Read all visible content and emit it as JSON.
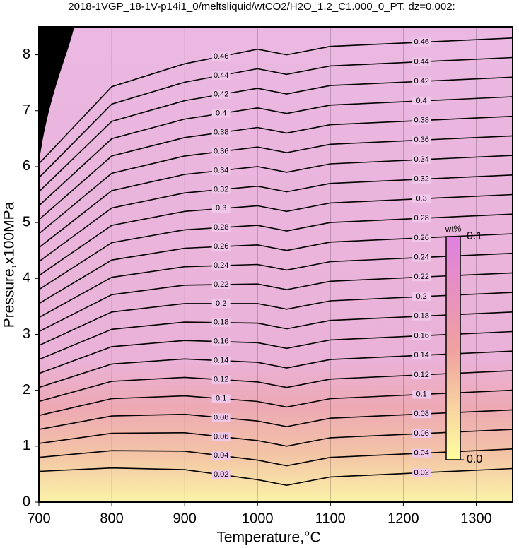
{
  "chart_data": {
    "type": "contour",
    "title": "2018-1VGP_18-1V-p14i1_0/meltsliquid/wtCO2/H2O_1.2_C1.000_0_PT, dz=0.002:",
    "x_label": "Temperature,°C",
    "y_label": "Pressure,x100MPa",
    "xlim": [
      700,
      1350
    ],
    "ylim": [
      0,
      8.5
    ],
    "xticks": [
      700,
      800,
      900,
      1000,
      1100,
      1200,
      1300
    ],
    "yticks": [
      0,
      1,
      2,
      3,
      4,
      5,
      6,
      7,
      8
    ],
    "colorbar": {
      "label": "wt%",
      "lim": [
        0,
        0.1
      ],
      "ticks": [
        {
          "value": 0,
          "label": "0.0"
        },
        0.1
      ],
      "colors": [
        "#ffffa0",
        "#f0a0a0",
        "#e080e0"
      ]
    },
    "x": [
      700,
      800,
      900,
      1000,
      1040,
      1100,
      1350
    ],
    "series": [
      {
        "name": "0.02",
        "color": "#000000",
        "values": [
          0.55,
          0.61,
          0.58,
          0.4,
          0.3,
          0.45,
          0.6
        ]
      },
      {
        "name": "0.04",
        "color": "#000000",
        "values": [
          0.8,
          0.92,
          0.91,
          0.75,
          0.65,
          0.8,
          0.95
        ]
      },
      {
        "name": "0.06",
        "color": "#000000",
        "values": [
          1.05,
          1.23,
          1.24,
          1.1,
          1.0,
          1.15,
          1.3
        ]
      },
      {
        "name": "0.08",
        "color": "#000000",
        "values": [
          1.3,
          1.54,
          1.57,
          1.45,
          1.35,
          1.5,
          1.65
        ]
      },
      {
        "name": "0.1",
        "color": "#000000",
        "values": [
          1.55,
          1.85,
          1.9,
          1.8,
          1.7,
          1.85,
          2.0
        ]
      },
      {
        "name": "0.12",
        "color": "#000000",
        "values": [
          1.8,
          2.16,
          2.23,
          2.15,
          2.05,
          2.2,
          2.35
        ]
      },
      {
        "name": "0.14",
        "color": "#000000",
        "values": [
          2.05,
          2.47,
          2.56,
          2.5,
          2.4,
          2.55,
          2.7
        ]
      },
      {
        "name": "0.16",
        "color": "#000000",
        "values": [
          2.3,
          2.78,
          2.89,
          2.85,
          2.75,
          2.9,
          3.05
        ]
      },
      {
        "name": "0.18",
        "color": "#000000",
        "values": [
          2.55,
          3.09,
          3.22,
          3.2,
          3.1,
          3.25,
          3.4
        ]
      },
      {
        "name": "0.2",
        "color": "#000000",
        "values": [
          2.8,
          3.4,
          3.55,
          3.55,
          3.45,
          3.6,
          3.75
        ]
      },
      {
        "name": "0.22",
        "color": "#000000",
        "values": [
          3.05,
          3.71,
          3.88,
          3.9,
          3.8,
          3.95,
          4.1
        ]
      },
      {
        "name": "0.24",
        "color": "#000000",
        "values": [
          3.3,
          4.02,
          4.21,
          4.25,
          4.15,
          4.3,
          4.45
        ]
      },
      {
        "name": "0.26",
        "color": "#000000",
        "values": [
          3.55,
          4.33,
          4.54,
          4.6,
          4.5,
          4.65,
          4.8
        ]
      },
      {
        "name": "0.28",
        "color": "#000000",
        "values": [
          3.8,
          4.64,
          4.87,
          4.95,
          4.85,
          5.0,
          5.15
        ]
      },
      {
        "name": "0.3",
        "color": "#000000",
        "values": [
          4.05,
          4.95,
          5.2,
          5.3,
          5.2,
          5.35,
          5.5
        ]
      },
      {
        "name": "0.32",
        "color": "#000000",
        "values": [
          4.3,
          5.26,
          5.53,
          5.65,
          5.55,
          5.7,
          5.85
        ]
      },
      {
        "name": "0.34",
        "color": "#000000",
        "values": [
          4.55,
          5.57,
          5.86,
          6.0,
          5.9,
          6.05,
          6.2
        ]
      },
      {
        "name": "0.36",
        "color": "#000000",
        "values": [
          4.8,
          5.88,
          6.19,
          6.35,
          6.25,
          6.4,
          6.55
        ]
      },
      {
        "name": "0.38",
        "color": "#000000",
        "values": [
          5.05,
          6.19,
          6.52,
          6.7,
          6.6,
          6.75,
          6.9
        ]
      },
      {
        "name": "0.4",
        "color": "#000000",
        "values": [
          5.3,
          6.5,
          6.85,
          7.05,
          6.95,
          7.1,
          7.25
        ]
      },
      {
        "name": "0.42",
        "color": "#000000",
        "values": [
          5.55,
          6.81,
          7.18,
          7.4,
          7.3,
          7.45,
          7.6
        ]
      },
      {
        "name": "0.44",
        "color": "#000000",
        "values": [
          5.8,
          7.12,
          7.51,
          7.75,
          7.65,
          7.8,
          7.95
        ]
      },
      {
        "name": "0.46",
        "color": "#000000",
        "values": [
          6.05,
          7.43,
          7.84,
          8.1,
          8.0,
          8.15,
          8.3
        ]
      }
    ]
  }
}
